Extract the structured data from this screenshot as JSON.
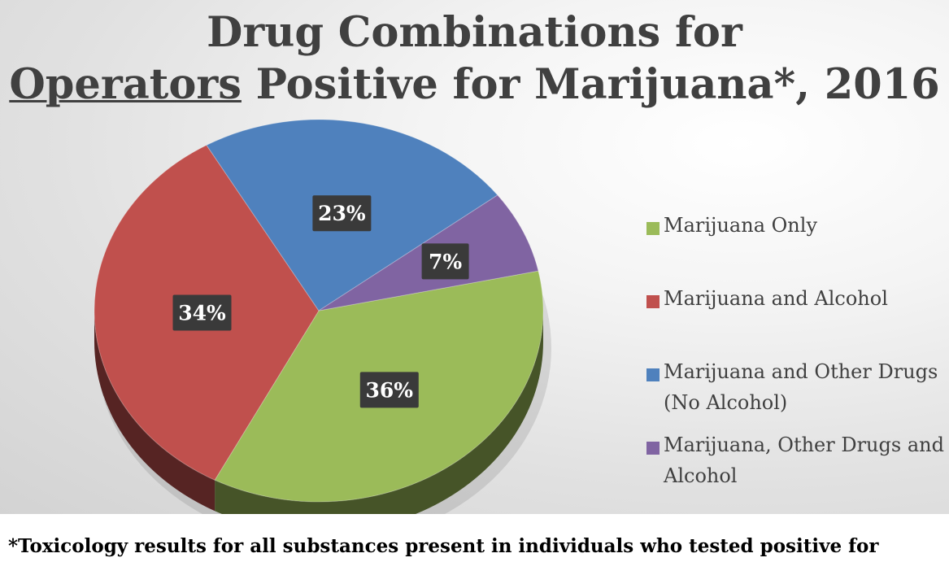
{
  "chart_data": {
    "type": "pie",
    "title_line1": "Drug Combinations for",
    "title_line2_underlined": "Operators",
    "title_line2_rest": " Positive for Marijuana*, 2016",
    "categories": [
      "Marijuana Only",
      "Marijuana and Alcohol",
      "Marijuana and Other Drugs (No Alcohol)",
      "Marijuana, Other Drugs and Alcohol"
    ],
    "values": [
      36,
      34,
      23,
      7
    ],
    "data_labels": [
      "36%",
      "34%",
      "23%",
      "7%"
    ],
    "colors": [
      "#9bbb59",
      "#c0504d",
      "#4f81bd",
      "#8064a2"
    ],
    "legend_placement": "right",
    "legend": [
      {
        "line1": "Marijuana Only",
        "line2": ""
      },
      {
        "line1": "Marijuana and Alcohol",
        "line2": ""
      },
      {
        "line1": "Marijuana and Other Drugs",
        "line2": "(No Alcohol)"
      },
      {
        "line1": "Marijuana, Other Drugs and",
        "line2": "Alcohol"
      }
    ],
    "style": "3d-pie"
  },
  "footnote": "*Toxicology results for all substances present in individuals who tested positive for"
}
